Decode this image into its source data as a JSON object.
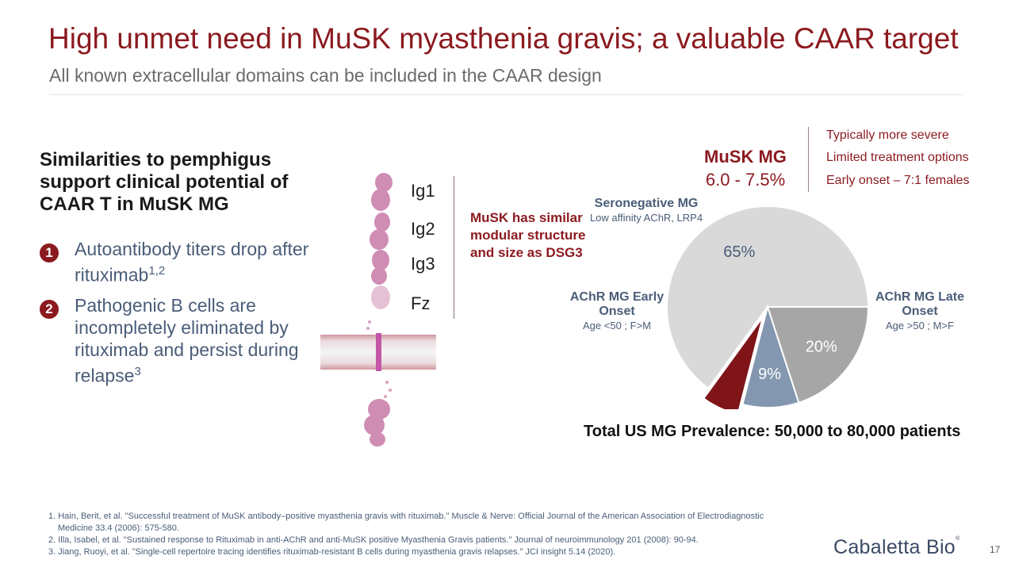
{
  "header": {
    "title": "High unmet need in MuSK myasthenia gravis; a valuable CAAR target",
    "subtitle": "All known extracellular domains can be included in the CAAR design"
  },
  "left": {
    "heading": "Similarities to pemphigus support clinical potential of CAAR T in MuSK MG",
    "points": [
      {
        "num": "1",
        "text": "Autoantibody titers drop after rituximab",
        "sup": "1,2"
      },
      {
        "num": "2",
        "text": "Pathogenic B cells are incompletely eliminated by rituximab and persist during relapse",
        "sup": "3"
      }
    ]
  },
  "protein": {
    "domains": [
      "Ig1",
      "Ig2",
      "Ig3",
      "Fz"
    ],
    "note": "MuSK has similar modular structure and size as DSG3"
  },
  "musk": {
    "title": "MuSK MG",
    "range": "6.0 - 7.5%",
    "features": [
      "Typically more severe",
      "Limited treatment options",
      "Early onset – 7:1 females"
    ]
  },
  "segment_labels": {
    "seronegative": {
      "name": "Seronegative MG",
      "detail": "Low affinity AChR, LRP4"
    },
    "early": {
      "name": "AChR MG Early Onset",
      "detail": "Age <50 ; F>M"
    },
    "late": {
      "name": "AChR MG Late Onset",
      "detail": "Age >50 ; M>F"
    }
  },
  "chart_data": {
    "type": "pie",
    "title": "",
    "slices": [
      {
        "label": "AChR MG Late Onset",
        "value": 65,
        "display": "65%",
        "color": "#d9d9d9"
      },
      {
        "label": "AChR MG Early Onset",
        "value": 20,
        "display": "20%",
        "color": "#a6a6a6"
      },
      {
        "label": "Seronegative MG",
        "value": 9,
        "display": "9%",
        "color": "#8497b0"
      },
      {
        "label": "MuSK MG",
        "value": 6,
        "display": "",
        "color": "#7f1419",
        "exploded": true
      }
    ]
  },
  "total": "Total US MG Prevalence: 50,000 to 80,000 patients",
  "references": [
    "1. Hain, Berit, et al. \"Successful treatment of MuSK antibody–positive myasthenia gravis with rituximab.\" Muscle & Nerve: Official Journal of the American Association of Electrodiagnostic Medicine 33.4 (2006): 575-580.",
    "2. Illa, Isabel, et al. \"Sustained response to Rituximab in anti-AChR and anti-MuSK positive Myasthenia Gravis patients.\" Journal of neuroimmunology 201 (2008): 90-94.",
    "3. Jiang, Ruoyi, et al. \"Single-cell repertoire tracing identifies rituximab-resistant B cells during myasthenia gravis relapses.\" JCI insight 5.14 (2020)."
  ],
  "footer": {
    "logo": "Cabaletta Bio",
    "logo_mark": "®",
    "page": "17"
  }
}
